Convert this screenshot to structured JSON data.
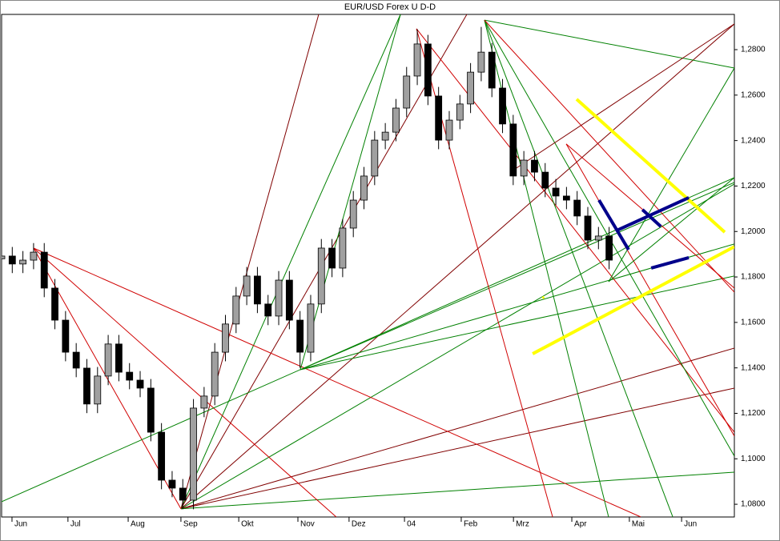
{
  "chart_data": {
    "type": "candlestick",
    "title": "EUR/USD Forex  U D-D",
    "up_color": "#a0a0a0",
    "down_color": "#000000",
    "xlim": [
      0,
      275
    ],
    "ylim": [
      1.0744,
      1.2955
    ],
    "xticks": [
      {
        "value": 3.9,
        "label": "Jun"
      },
      {
        "value": 24.9,
        "label": "Jul"
      },
      {
        "value": 47.5,
        "label": "Aug"
      },
      {
        "value": 67.3,
        "label": "Sep"
      },
      {
        "value": 89,
        "label": "Okt"
      },
      {
        "value": 111.2,
        "label": "Nov"
      },
      {
        "value": 130.4,
        "label": "Dez"
      },
      {
        "value": 151.2,
        "label": "04"
      },
      {
        "value": 172.5,
        "label": "Feb"
      },
      {
        "value": 192.1,
        "label": "Mrz"
      },
      {
        "value": 214,
        "label": "Apr"
      },
      {
        "value": 235.6,
        "label": "Mai"
      },
      {
        "value": 255.2,
        "label": "Jun"
      }
    ],
    "yticks": [
      {
        "value": 1.08,
        "label": "1,0800"
      },
      {
        "value": 1.1,
        "label": "1,1000"
      },
      {
        "value": 1.12,
        "label": "1,1200"
      },
      {
        "value": 1.14,
        "label": "1,1400"
      },
      {
        "value": 1.16,
        "label": "1,1600"
      },
      {
        "value": 1.18,
        "label": "1,1800"
      },
      {
        "value": 1.2,
        "label": "1,2000"
      },
      {
        "value": 1.22,
        "label": "1,2200"
      },
      {
        "value": 1.24,
        "label": "1,2400"
      },
      {
        "value": 1.26,
        "label": "1,2600"
      },
      {
        "value": 1.28,
        "label": "1,2800"
      }
    ],
    "x": [
      0,
      4,
      8,
      12,
      16,
      20,
      24,
      28,
      32,
      36,
      40,
      44,
      48,
      52,
      56,
      60,
      64,
      68,
      72,
      76,
      80,
      84,
      88,
      92,
      96,
      100,
      104,
      108,
      112,
      116,
      120,
      124,
      128,
      132,
      136,
      140,
      144,
      148,
      152,
      156,
      160,
      164,
      168,
      172,
      176,
      180,
      184,
      188,
      192,
      196,
      200,
      204,
      208,
      212,
      216,
      220,
      224,
      228
    ],
    "open": [
      1.188,
      1.1892,
      1.1857,
      1.1874,
      1.1909,
      1.1751,
      1.161,
      1.1469,
      1.1399,
      1.1241,
      1.1364,
      1.1505,
      1.1381,
      1.1346,
      1.1311,
      1.1117,
      1.0906,
      1.0871,
      1.0818,
      1.1223,
      1.1276,
      1.1469,
      1.1593,
      1.1716,
      1.1804,
      1.1681,
      1.1628,
      1.1786,
      1.161,
      1.1469,
      1.1681,
      1.1927,
      1.1839,
      1.2015,
      1.2138,
      1.2244,
      1.2402,
      1.2437,
      1.2543,
      1.2684,
      1.2825,
      1.2596,
      1.2402,
      1.249,
      1.2561,
      1.2701,
      1.2789,
      1.2631,
      1.2473,
      1.2244,
      1.2314,
      1.2261,
      1.2191,
      1.2156,
      1.2138,
      1.2068,
      1.1962,
      1.198
    ],
    "high": [
      1.1932,
      1.1932,
      1.1914,
      1.1949,
      1.1949,
      1.1791,
      1.165,
      1.1509,
      1.1439,
      1.1404,
      1.1545,
      1.1545,
      1.1421,
      1.1386,
      1.1351,
      1.1157,
      1.0946,
      1.0911,
      1.1263,
      1.1316,
      1.1509,
      1.1633,
      1.1756,
      1.1844,
      1.1844,
      1.1721,
      1.1826,
      1.1826,
      1.165,
      1.1721,
      1.1967,
      1.1967,
      1.2055,
      1.2178,
      1.2284,
      1.2442,
      1.2477,
      1.2583,
      1.2724,
      1.289,
      1.2865,
      1.2636,
      1.253,
      1.2601,
      1.2741,
      1.29,
      1.2829,
      1.2671,
      1.2513,
      1.2354,
      1.2354,
      1.2301,
      1.2231,
      1.2196,
      1.2178,
      1.2108,
      1.202,
      1.202
    ],
    "low": [
      1.184,
      1.1817,
      1.1817,
      1.1834,
      1.1711,
      1.157,
      1.1429,
      1.1359,
      1.1201,
      1.1201,
      1.1324,
      1.1341,
      1.1306,
      1.1271,
      1.1077,
      1.0866,
      1.0831,
      1.0778,
      1.0778,
      1.1183,
      1.1236,
      1.1429,
      1.1553,
      1.1676,
      1.1641,
      1.1588,
      1.1588,
      1.157,
      1.14,
      1.1429,
      1.1641,
      1.1799,
      1.1799,
      1.1975,
      1.2098,
      1.2204,
      1.2362,
      1.2397,
      1.2503,
      1.2644,
      1.2556,
      1.2362,
      1.2362,
      1.245,
      1.2521,
      1.2661,
      1.2591,
      1.2433,
      1.2204,
      1.2204,
      1.2221,
      1.2151,
      1.2116,
      1.2098,
      1.2028,
      1.1922,
      1.1922,
      1.1834
    ],
    "close": [
      1.1892,
      1.1857,
      1.1874,
      1.1909,
      1.1751,
      1.161,
      1.1469,
      1.1399,
      1.1241,
      1.1364,
      1.1505,
      1.1381,
      1.1346,
      1.1311,
      1.1117,
      1.0906,
      1.0871,
      1.0818,
      1.1223,
      1.1276,
      1.1469,
      1.1593,
      1.1716,
      1.1804,
      1.1681,
      1.1628,
      1.1786,
      1.161,
      1.1469,
      1.1681,
      1.1927,
      1.1839,
      1.2015,
      1.2138,
      1.2244,
      1.2402,
      1.2437,
      1.2543,
      1.2684,
      1.2825,
      1.2596,
      1.2402,
      1.249,
      1.2561,
      1.2701,
      1.2789,
      1.2631,
      1.2473,
      1.2244,
      1.2314,
      1.2261,
      1.2191,
      1.2156,
      1.2138,
      1.2068,
      1.1962,
      1.198,
      1.1874
    ],
    "lines": [
      {
        "x": [
          67.3,
          119
        ],
        "y": [
          1.078,
          1.2955
        ],
        "color": "#800000",
        "width": 1
      },
      {
        "x": [
          67.3,
          149.7
        ],
        "y": [
          1.078,
          1.2955
        ],
        "color": "#008000",
        "width": 1
      },
      {
        "x": [
          67.3,
          174.6
        ],
        "y": [
          1.078,
          1.2955
        ],
        "color": "#800000",
        "width": 1
      },
      {
        "x": [
          67.3,
          275
        ],
        "y": [
          1.078,
          1.2913
        ],
        "color": "#800000",
        "width": 1
      },
      {
        "x": [
          67.3,
          275
        ],
        "y": [
          1.078,
          1.2209
        ],
        "color": "#008000",
        "width": 1
      },
      {
        "x": [
          67.3,
          275
        ],
        "y": [
          1.078,
          1.1487
        ],
        "color": "#800000",
        "width": 1
      },
      {
        "x": [
          67.3,
          275
        ],
        "y": [
          1.078,
          1.1311
        ],
        "color": "#800000",
        "width": 1
      },
      {
        "x": [
          67.3,
          275
        ],
        "y": [
          1.078,
          1.0941
        ],
        "color": "#008000",
        "width": 1
      },
      {
        "x": [
          12,
          67.3
        ],
        "y": [
          1.1927,
          1.078
        ],
        "color": "#d00000",
        "width": 1
      },
      {
        "x": [
          12,
          125.6
        ],
        "y": [
          1.1927,
          1.0744
        ],
        "color": "#d00000",
        "width": 1
      },
      {
        "x": [
          12,
          239.9
        ],
        "y": [
          1.1927,
          1.0744
        ],
        "color": "#d00000",
        "width": 1
      },
      {
        "x": [
          0,
          275
        ],
        "y": [
          1.0811,
          1.2237
        ],
        "color": "#008000",
        "width": 1
      },
      {
        "x": [
          112.1,
          149.7
        ],
        "y": [
          1.1392,
          1.2955
        ],
        "color": "#008000",
        "width": 1
      },
      {
        "x": [
          112.1,
          275
        ],
        "y": [
          1.1392,
          1.2216
        ],
        "color": "#008000",
        "width": 1
      },
      {
        "x": [
          112.1,
          275
        ],
        "y": [
          1.1392,
          1.1945
        ],
        "color": "#008000",
        "width": 1
      },
      {
        "x": [
          112.1,
          275
        ],
        "y": [
          1.1392,
          1.1804
        ],
        "color": "#008000",
        "width": 1
      },
      {
        "x": [
          155.7,
          206.8
        ],
        "y": [
          1.2892,
          1.0744
        ],
        "color": "#d00000",
        "width": 1
      },
      {
        "x": [
          155.7,
          275
        ],
        "y": [
          1.2892,
          1.1117
        ],
        "color": "#d00000",
        "width": 1
      },
      {
        "x": [
          181.2,
          275
        ],
        "y": [
          1.293,
          1.2719
        ],
        "color": "#008000",
        "width": 1
      },
      {
        "x": [
          181.2,
          275
        ],
        "y": [
          1.293,
          1.1012
        ],
        "color": "#008000",
        "width": 1
      },
      {
        "x": [
          181.2,
          251.9
        ],
        "y": [
          1.293,
          1.0744
        ],
        "color": "#008000",
        "width": 1
      },
      {
        "x": [
          181.2,
          227.8
        ],
        "y": [
          1.293,
          1.0744
        ],
        "color": "#008000",
        "width": 1
      },
      {
        "x": [
          181.2,
          275
        ],
        "y": [
          1.293,
          1.1733
        ],
        "color": "#d00000",
        "width": 1
      },
      {
        "x": [
          211.9,
          275
        ],
        "y": [
          1.2385,
          1.11
        ],
        "color": "#d00000",
        "width": 1
      },
      {
        "x": [
          211.9,
          275
        ],
        "y": [
          1.2385,
          1.1751
        ],
        "color": "#d00000",
        "width": 1
      },
      {
        "x": [
          191.8,
          275
        ],
        "y": [
          1.2268,
          1.2913
        ],
        "color": "#800000",
        "width": 1
      },
      {
        "x": [
          227.8,
          275
        ],
        "y": [
          1.1779,
          1.2719
        ],
        "color": "#008000",
        "width": 1
      },
      {
        "x": [
          227.8,
          275
        ],
        "y": [
          1.1779,
          1.2237
        ],
        "color": "#008000",
        "width": 1
      },
      {
        "x": [
          215.8,
          271.4
        ],
        "y": [
          1.2582,
          1.1997
        ],
        "color": "#ffff00",
        "width": 4
      },
      {
        "x": [
          199.3,
          275
        ],
        "y": [
          1.1462,
          1.1933
        ],
        "color": "#ffff00",
        "width": 4
      },
      {
        "x": [
          203,
          203.6
        ],
        "y": [
          1.1707,
          1.1712
        ],
        "color": "#ffff00",
        "width": 3
      },
      {
        "x": [
          224.2,
          235.3
        ],
        "y": [
          1.2138,
          1.192
        ],
        "color": "#00008b",
        "width": 4
      },
      {
        "x": [
          230.8,
          257.9
        ],
        "y": [
          1.2004,
          1.2149
        ],
        "color": "#00008b",
        "width": 4
      },
      {
        "x": [
          240.5,
          247.4
        ],
        "y": [
          1.2096,
          1.2022
        ],
        "color": "#00008b",
        "width": 4
      },
      {
        "x": [
          243.8,
          257.9
        ],
        "y": [
          1.1839,
          1.1885
        ],
        "color": "#00008b",
        "width": 4
      }
    ]
  }
}
